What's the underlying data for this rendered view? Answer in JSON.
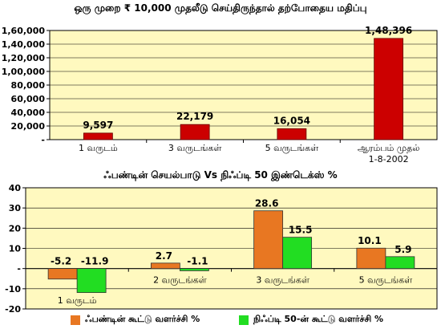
{
  "chart_data": [
    {
      "type": "bar",
      "title": "ஒரு முறை ₹ 10,000 முதலீடு செய்திருந்தால் தற்போதைய மதிப்பு",
      "categories": [
        "1 வருடம்",
        "3 வருடங்கள்",
        "5 வருடங்கள்",
        "ஆரம்பம் முதல் 1-8-2002"
      ],
      "values": [
        9597,
        22179,
        16054,
        148396
      ],
      "data_labels": [
        "9,597",
        "22,179",
        "16,054",
        "1,48,396"
      ],
      "ylim": [
        0,
        160000
      ],
      "yticks": [
        0,
        20000,
        40000,
        60000,
        80000,
        100000,
        120000,
        140000,
        160000
      ],
      "ytick_labels": [
        "-",
        "20,000",
        "40,000",
        "60,000",
        "80,000",
        "1,00,000",
        "1,20,000",
        "1,40,000",
        "1,60,000"
      ],
      "bar_color": "#cc0000",
      "plot_background": "#fff9bf"
    },
    {
      "type": "bar",
      "title": "ஃபண்டின் செயல்பாடு Vs நிஃப்டி 50 இண்டெக்ஸ் %",
      "categories": [
        "1 வருடம்",
        "2 வருடங்கள்",
        "3 வருடங்கள்",
        "5 வருடங்கள்"
      ],
      "series": [
        {
          "name": "ஃபண்டின் கூட்டு வளர்ச்சி %",
          "values": [
            -5.2,
            2.7,
            28.6,
            10.1
          ],
          "color": "#e87722"
        },
        {
          "name": "நிஃப்டி 50-ன் கூட்டு வளர்ச்சி %",
          "values": [
            -11.9,
            -1.1,
            15.5,
            5.9
          ],
          "color": "#22dd22"
        }
      ],
      "data_labels": [
        [
          "-5.2",
          "2.7",
          "28.6",
          "10.1"
        ],
        [
          "-11.9",
          "-1.1",
          "15.5",
          "5.9"
        ]
      ],
      "ylim": [
        -20,
        40
      ],
      "yticks": [
        -20,
        -10,
        0,
        10,
        20,
        30,
        40
      ],
      "ytick_labels": [
        "-20",
        "-10",
        "-",
        "10",
        "20",
        "30",
        "40"
      ],
      "legend_position": "bottom",
      "plot_background": "#fff9bf"
    }
  ]
}
